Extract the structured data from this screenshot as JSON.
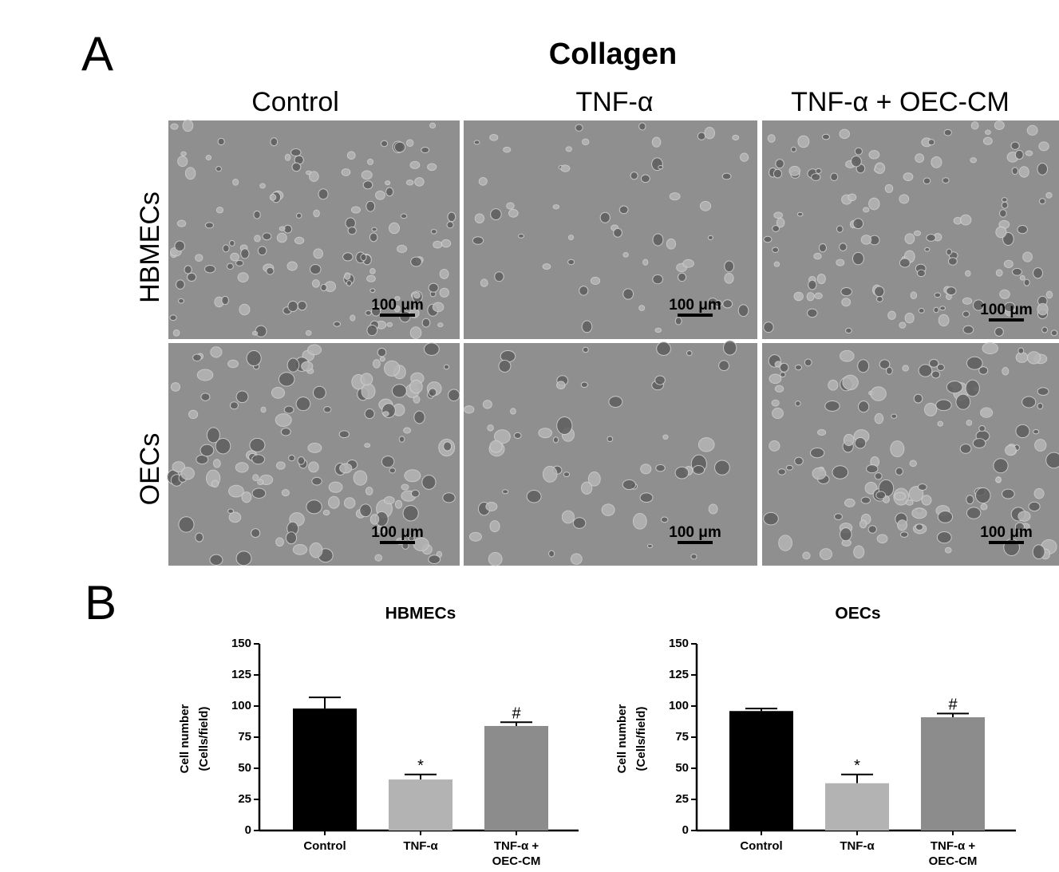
{
  "panel_a": {
    "label": "A",
    "title": "Collagen",
    "columns": [
      "Control",
      "TNF-α",
      "TNF-α + OEC-CM"
    ],
    "rows": [
      "HBMECs",
      "OECs"
    ],
    "scale_bar": "100 μm"
  },
  "panel_b": {
    "label": "B"
  },
  "chart_data": [
    {
      "type": "bar",
      "title": "HBMECs",
      "y_label": [
        "Cell number",
        "(Cells/field)"
      ],
      "categories": [
        [
          "Control"
        ],
        [
          "TNF-α"
        ],
        [
          "TNF-α +",
          "OEC-CM"
        ]
      ],
      "values": [
        98,
        41,
        84
      ],
      "errors": [
        9,
        4,
        3
      ],
      "annotations": [
        null,
        "*",
        "#"
      ],
      "colors": [
        "#000000",
        "#b3b3b3",
        "#8c8c8c"
      ],
      "ylim": [
        0,
        150
      ],
      "yticks": [
        0,
        25,
        50,
        75,
        100,
        125,
        150
      ]
    },
    {
      "type": "bar",
      "title": "OECs",
      "y_label": [
        "Cell number",
        "(Cells/field)"
      ],
      "categories": [
        [
          "Control"
        ],
        [
          "TNF-α"
        ],
        [
          "TNF-α +",
          "OEC-CM"
        ]
      ],
      "values": [
        96,
        38,
        91
      ],
      "errors": [
        2,
        7,
        3
      ],
      "annotations": [
        null,
        "*",
        "#"
      ],
      "colors": [
        "#000000",
        "#b3b3b3",
        "#8c8c8c"
      ],
      "ylim": [
        0,
        150
      ],
      "yticks": [
        0,
        25,
        50,
        75,
        100,
        125,
        150
      ]
    }
  ]
}
